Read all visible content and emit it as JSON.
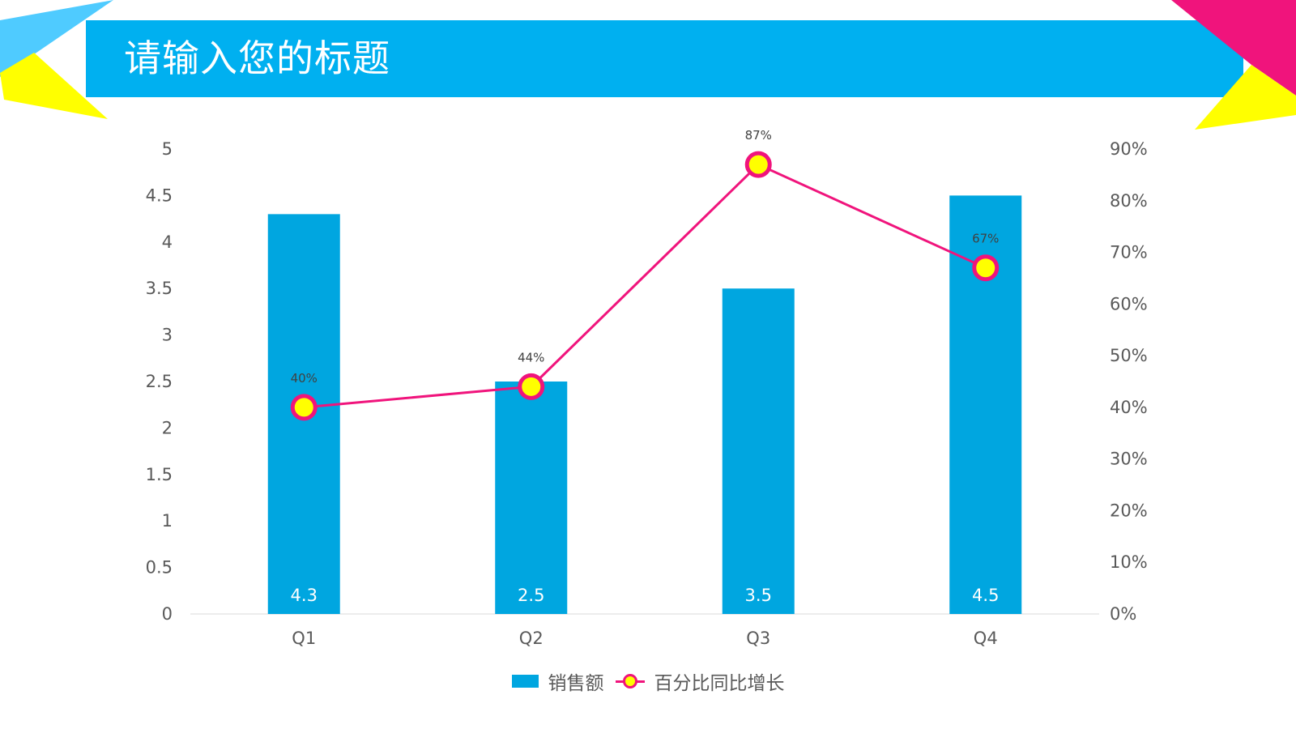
{
  "header": {
    "title": "请输入您的标题"
  },
  "colors": {
    "banner": "#00b0f0",
    "bar": "#00a6e0",
    "line": "#f0147c",
    "marker_fill": "#ffff00",
    "accent_pink": "#f0147c",
    "accent_yellow": "#ffff00",
    "accent_lightblue": "#4fcbff"
  },
  "chart_data": {
    "type": "bar+line",
    "categories": [
      "Q1",
      "Q2",
      "Q3",
      "Q4"
    ],
    "series": [
      {
        "name": "销售额",
        "type": "bar",
        "axis": "left",
        "values": [
          4.3,
          2.5,
          3.5,
          4.5
        ],
        "labels": [
          "4.3",
          "2.5",
          "3.5",
          "4.5"
        ]
      },
      {
        "name": "百分比同比增长",
        "type": "line",
        "axis": "right",
        "values": [
          0.4,
          0.44,
          0.87,
          0.67
        ],
        "labels": [
          "40%",
          "44%",
          "87%",
          "67%"
        ]
      }
    ],
    "left_axis": {
      "ylim": [
        0,
        5
      ],
      "ticks": [
        "0",
        "0.5",
        "1",
        "1.5",
        "2",
        "2.5",
        "3",
        "3.5",
        "4",
        "4.5",
        "5"
      ]
    },
    "right_axis": {
      "ylim": [
        0,
        0.9
      ],
      "ticks": [
        "0%",
        "10%",
        "20%",
        "30%",
        "40%",
        "50%",
        "60%",
        "70%",
        "80%",
        "90%"
      ]
    },
    "grid": false,
    "legend": "bottom"
  }
}
